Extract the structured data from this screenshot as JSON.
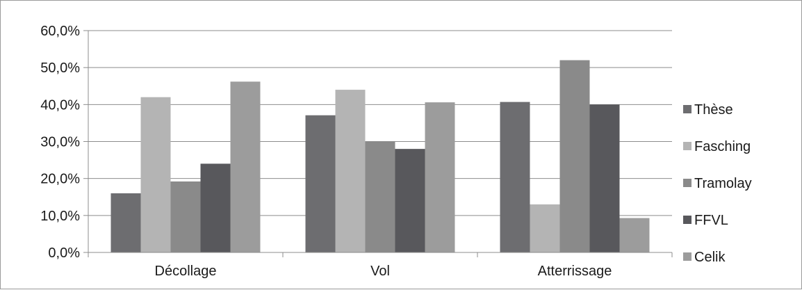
{
  "chart_data": {
    "type": "bar",
    "categories": [
      "Décollage",
      "Vol",
      "Atterrissage"
    ],
    "series": [
      {
        "name": "Thèse",
        "color": "#6d6d70",
        "values": [
          16.0,
          37.1,
          40.7
        ]
      },
      {
        "name": "Fasching",
        "color": "#b4b4b4",
        "values": [
          42.0,
          44.0,
          13.0
        ]
      },
      {
        "name": "Tramolay",
        "color": "#8a8a8a",
        "values": [
          19.2,
          30.0,
          52.0
        ]
      },
      {
        "name": "FFVL",
        "color": "#58585c",
        "values": [
          24.0,
          28.0,
          40.0
        ]
      },
      {
        "name": "Celik",
        "color": "#9c9c9c",
        "values": [
          46.2,
          40.6,
          9.3
        ]
      }
    ],
    "y_ticks": [
      "0,0%",
      "10,0%",
      "20,0%",
      "30,0%",
      "40,0%",
      "50,0%",
      "60,0%"
    ],
    "ylim": [
      0,
      60
    ],
    "grid": true,
    "legend_position": "right"
  }
}
